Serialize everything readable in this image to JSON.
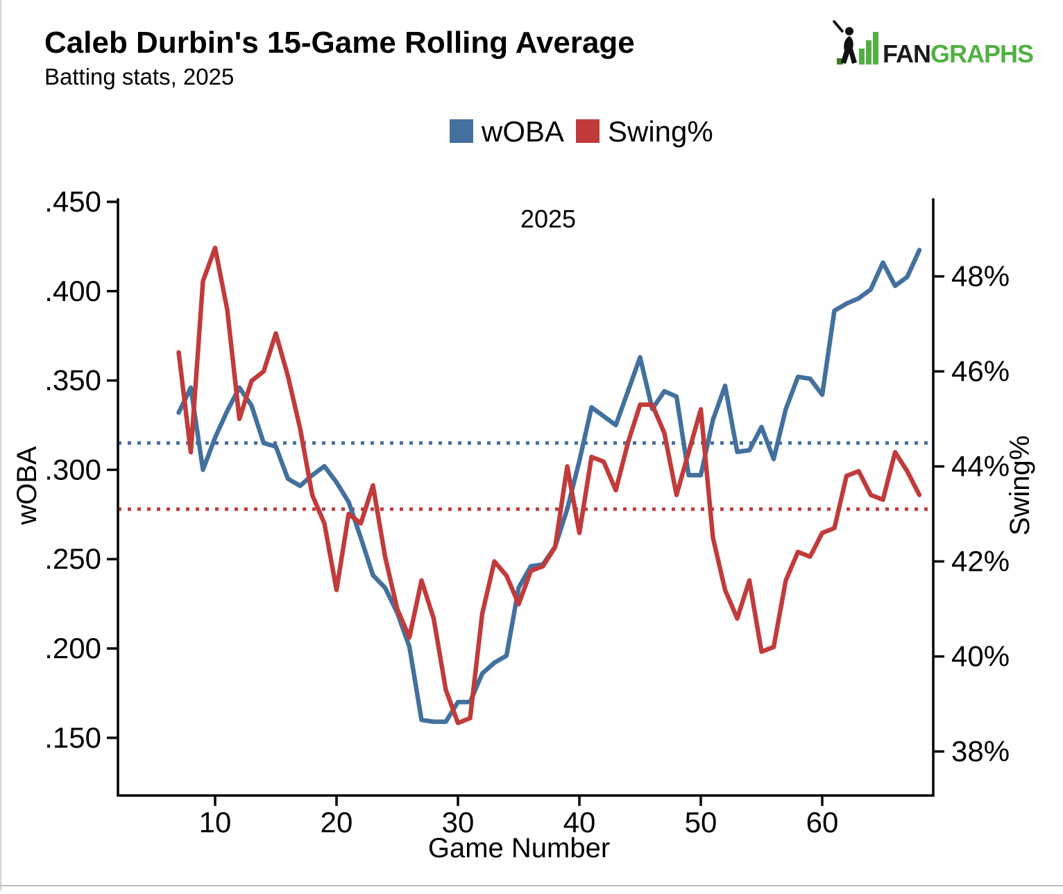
{
  "header": {
    "title": "Caleb Durbin's 15-Game Rolling Average",
    "subtitle": "Batting stats, 2025"
  },
  "logo": {
    "fan": "FAN",
    "graphs": "GRAPHS",
    "green": "#52B043",
    "black": "#1a1a1a"
  },
  "annotation": {
    "year": "2025",
    "color": "#8C8C8C"
  },
  "colors": {
    "woba_blue": "#43709E",
    "swing_red": "#C13B3B",
    "axis_black": "#000000"
  },
  "chart_data": {
    "type": "line",
    "title": "Caleb Durbin's 15-Game Rolling Average",
    "subtitle": "Batting stats, 2025",
    "xlabel": "Game Number",
    "legend_position": "top-center",
    "grid": false,
    "x_start_game": 7,
    "x_ticks": [
      10,
      20,
      30,
      40,
      50,
      60
    ],
    "left_axis": {
      "label": "wOBA",
      "tick_labels": [
        ".450",
        ".400",
        ".350",
        ".300",
        ".250",
        ".200",
        ".150"
      ],
      "tick_values": [
        0.45,
        0.4,
        0.35,
        0.3,
        0.25,
        0.2,
        0.15
      ],
      "range": [
        0.117,
        0.452
      ]
    },
    "right_axis": {
      "label": "Swing%",
      "tick_labels": [
        "48%",
        "46%",
        "44%",
        "42%",
        "40%",
        "38%"
      ],
      "tick_values": [
        48,
        46,
        44,
        42,
        40,
        38
      ],
      "range": [
        37.05,
        49.6
      ]
    },
    "series": [
      {
        "name": "wOBA",
        "axis": "left",
        "color": "#43709E",
        "league_average": 0.315,
        "values": [
          0.332,
          0.346,
          0.3,
          0.318,
          0.333,
          0.346,
          0.336,
          0.315,
          0.313,
          0.295,
          0.291,
          0.297,
          0.302,
          0.293,
          0.282,
          0.262,
          0.241,
          0.234,
          0.22,
          0.201,
          0.16,
          0.159,
          0.159,
          0.17,
          0.17,
          0.186,
          0.192,
          0.196,
          0.234,
          0.246,
          0.247,
          0.257,
          0.278,
          0.305,
          0.335,
          0.33,
          0.325,
          0.344,
          0.363,
          0.334,
          0.344,
          0.341,
          0.297,
          0.297,
          0.328,
          0.347,
          0.31,
          0.311,
          0.324,
          0.306,
          0.334,
          0.352,
          0.351,
          0.342,
          0.389,
          0.393,
          0.396,
          0.401,
          0.416,
          0.403,
          0.408,
          0.423
        ]
      },
      {
        "name": "Swing%",
        "axis": "right",
        "color": "#C13B3B",
        "league_average": 43.1,
        "values": [
          46.4,
          44.3,
          47.9,
          48.6,
          47.3,
          45.0,
          45.8,
          46.0,
          46.8,
          45.9,
          44.8,
          43.4,
          42.8,
          41.4,
          43.0,
          42.8,
          43.6,
          42.1,
          41.0,
          40.4,
          41.6,
          40.8,
          39.3,
          38.6,
          38.7,
          40.9,
          42.0,
          41.7,
          41.1,
          41.8,
          41.9,
          42.3,
          44.0,
          42.6,
          44.2,
          44.1,
          43.5,
          44.5,
          45.3,
          45.3,
          44.7,
          43.4,
          44.3,
          45.2,
          42.5,
          41.4,
          40.8,
          41.6,
          40.1,
          40.2,
          41.6,
          42.2,
          42.1,
          42.6,
          42.7,
          43.8,
          43.9,
          43.4,
          43.3,
          44.3,
          43.9,
          43.4
        ]
      }
    ]
  }
}
